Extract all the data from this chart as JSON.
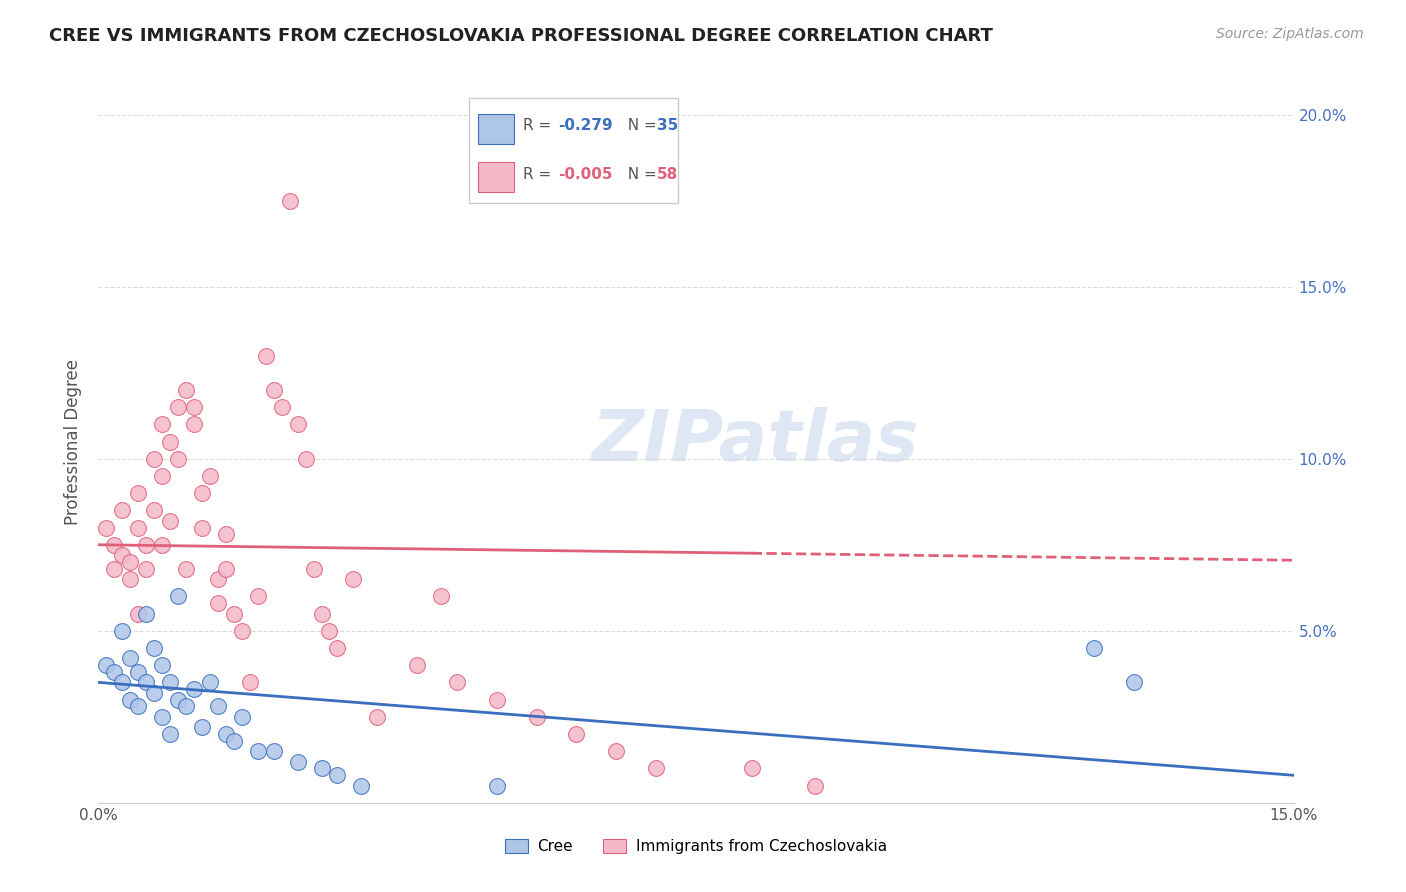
{
  "title": "CREE VS IMMIGRANTS FROM CZECHOSLOVAKIA PROFESSIONAL DEGREE CORRELATION CHART",
  "source": "Source: ZipAtlas.com",
  "ylabel": "Professional Degree",
  "xlim": [
    0.0,
    0.15
  ],
  "ylim": [
    0.0,
    0.21
  ],
  "cree_R": -0.279,
  "cree_N": 35,
  "czech_R": -0.005,
  "czech_N": 58,
  "cree_color": "#aec6e8",
  "czech_color": "#f4b8c8",
  "cree_line_color": "#3a6fbf",
  "czech_line_color": "#e0607a",
  "background_color": "#ffffff",
  "grid_color": "#dddddd",
  "cree_x": [
    0.001,
    0.002,
    0.003,
    0.003,
    0.004,
    0.004,
    0.005,
    0.005,
    0.006,
    0.006,
    0.007,
    0.007,
    0.008,
    0.008,
    0.009,
    0.009,
    0.01,
    0.01,
    0.011,
    0.012,
    0.013,
    0.014,
    0.015,
    0.016,
    0.017,
    0.018,
    0.02,
    0.022,
    0.025,
    0.028,
    0.03,
    0.033,
    0.05,
    0.125,
    0.13
  ],
  "cree_y": [
    0.04,
    0.038,
    0.035,
    0.05,
    0.042,
    0.03,
    0.038,
    0.028,
    0.055,
    0.035,
    0.045,
    0.032,
    0.04,
    0.025,
    0.035,
    0.02,
    0.06,
    0.03,
    0.028,
    0.033,
    0.022,
    0.035,
    0.028,
    0.02,
    0.018,
    0.025,
    0.015,
    0.015,
    0.012,
    0.01,
    0.008,
    0.005,
    0.005,
    0.045,
    0.035
  ],
  "czech_x": [
    0.001,
    0.002,
    0.002,
    0.003,
    0.003,
    0.004,
    0.004,
    0.005,
    0.005,
    0.005,
    0.006,
    0.006,
    0.007,
    0.007,
    0.008,
    0.008,
    0.008,
    0.009,
    0.009,
    0.01,
    0.01,
    0.011,
    0.011,
    0.012,
    0.012,
    0.013,
    0.013,
    0.014,
    0.015,
    0.015,
    0.016,
    0.016,
    0.017,
    0.018,
    0.019,
    0.02,
    0.021,
    0.022,
    0.023,
    0.024,
    0.025,
    0.026,
    0.027,
    0.028,
    0.029,
    0.03,
    0.032,
    0.035,
    0.04,
    0.043,
    0.045,
    0.05,
    0.055,
    0.06,
    0.065,
    0.07,
    0.082,
    0.09
  ],
  "czech_y": [
    0.08,
    0.075,
    0.068,
    0.072,
    0.085,
    0.07,
    0.065,
    0.08,
    0.055,
    0.09,
    0.075,
    0.068,
    0.085,
    0.1,
    0.095,
    0.075,
    0.11,
    0.105,
    0.082,
    0.115,
    0.1,
    0.12,
    0.068,
    0.115,
    0.11,
    0.09,
    0.08,
    0.095,
    0.065,
    0.058,
    0.078,
    0.068,
    0.055,
    0.05,
    0.035,
    0.06,
    0.13,
    0.12,
    0.115,
    0.175,
    0.11,
    0.1,
    0.068,
    0.055,
    0.05,
    0.045,
    0.065,
    0.025,
    0.04,
    0.06,
    0.035,
    0.03,
    0.025,
    0.02,
    0.015,
    0.01,
    0.01,
    0.005
  ],
  "czech_line_solid_end": 0.082,
  "cree_line_intercept": 0.035,
  "cree_line_slope": -0.18,
  "czech_line_intercept": 0.075,
  "czech_line_slope": -0.03
}
